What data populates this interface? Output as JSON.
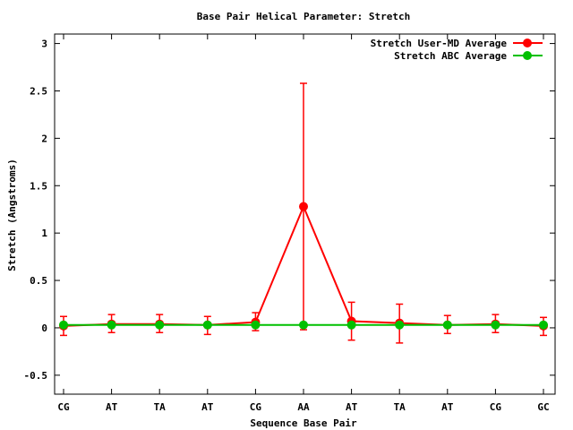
{
  "chart_data": {
    "type": "line",
    "title": "Base Pair Helical Parameter: Stretch",
    "xlabel": "Sequence Base Pair",
    "ylabel": "Stretch (Angstroms)",
    "categories": [
      "CG",
      "AT",
      "TA",
      "AT",
      "CG",
      "AA",
      "AT",
      "TA",
      "AT",
      "CG",
      "GC"
    ],
    "ylim": [
      -0.7,
      3.1
    ],
    "yticks": [
      -0.5,
      0,
      0.5,
      1,
      1.5,
      2,
      2.5,
      3
    ],
    "ytick_labels": [
      "-0.5",
      "0",
      "0.5",
      "1",
      "1.5",
      "2",
      "2.5",
      "3"
    ],
    "grid": false,
    "legend_position": "top-right",
    "series": [
      {
        "name": "Stretch User-MD Average",
        "color": "#ff0000",
        "values": [
          0.02,
          0.04,
          0.04,
          0.03,
          0.06,
          1.28,
          0.07,
          0.05,
          0.03,
          0.04,
          0.02
        ],
        "err_low": [
          -0.08,
          -0.05,
          -0.05,
          -0.07,
          -0.03,
          -0.02,
          -0.13,
          -0.16,
          -0.06,
          -0.05,
          -0.08
        ],
        "err_high": [
          0.12,
          0.14,
          0.14,
          0.12,
          0.16,
          2.58,
          0.27,
          0.25,
          0.13,
          0.14,
          0.11
        ]
      },
      {
        "name": "Stretch ABC Average",
        "color": "#00c000",
        "values": [
          0.03,
          0.03,
          0.03,
          0.03,
          0.03,
          0.03,
          0.03,
          0.03,
          0.03,
          0.03,
          0.03
        ]
      }
    ]
  }
}
